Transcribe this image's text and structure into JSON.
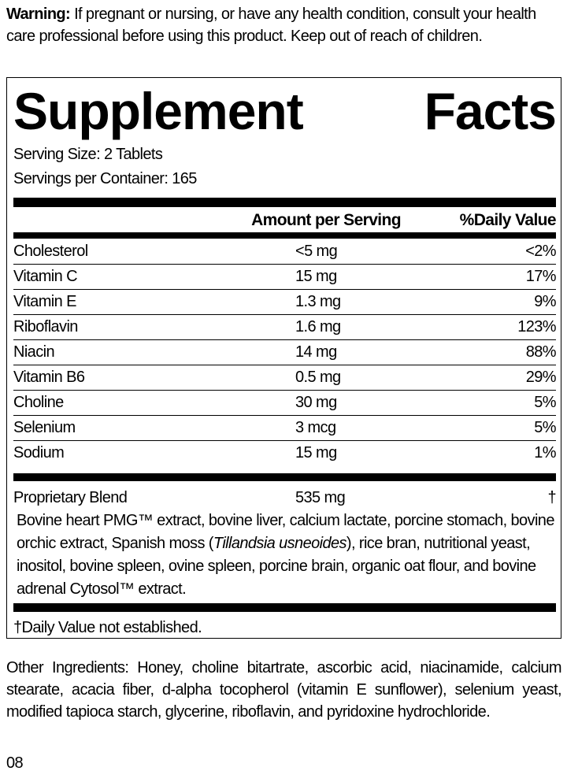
{
  "warning": {
    "label": "Warning:",
    "text": " If pregnant or nursing, or have any health condition, consult your health care professional before using this product. Keep out of reach of children."
  },
  "title": {
    "word1": "Supplement",
    "word2": "Facts"
  },
  "serving_size": "Serving Size: 2 Tablets",
  "servings_per_container": "Servings per Container: 165",
  "headers": {
    "amount": "Amount per Serving",
    "dv": "%Daily Value"
  },
  "rows": [
    {
      "name": "Cholesterol",
      "amount": "<5 mg",
      "dv": "<2%"
    },
    {
      "name": "Vitamin C",
      "amount": "15 mg",
      "dv": "17%"
    },
    {
      "name": "Vitamin E",
      "amount": "1.3 mg",
      "dv": "9%"
    },
    {
      "name": "Riboflavin",
      "amount": "1.6 mg",
      "dv": "123%"
    },
    {
      "name": "Niacin",
      "amount": "14 mg",
      "dv": "88%"
    },
    {
      "name": "Vitamin B6",
      "amount": "0.5 mg",
      "dv": "29%"
    },
    {
      "name": "Choline",
      "amount": "30 mg",
      "dv": "5%"
    },
    {
      "name": "Selenium",
      "amount": "3 mcg",
      "dv": "5%"
    },
    {
      "name": "Sodium",
      "amount": "15 mg",
      "dv": "1%"
    }
  ],
  "blend": {
    "name": "Proprietary Blend",
    "amount": "535 mg",
    "dv": "†",
    "ingredients_a": "Bovine heart PMG™ extract, bovine liver, calcium lactate, porcine stomach, bovine orchic extract, Spanish moss (",
    "ingredients_italic": "Tillandsia usneoides",
    "ingredients_b": "), rice bran, nutritional yeast, inositol, bovine spleen, ovine spleen, porcine brain, organic oat flour, and bovine adrenal Cytosol™ extract."
  },
  "footnote": "†Daily Value not established.",
  "other_ingredients": "Other Ingredients: Honey, choline bitartrate, ascorbic acid, niacinamide, calcium stearate, acacia fiber, d-alpha tocopherol (vitamin E sunflower), selenium yeast, modified tapioca starch, glycerine, riboflavin, and pyridoxine hydrochloride.",
  "code": "08"
}
